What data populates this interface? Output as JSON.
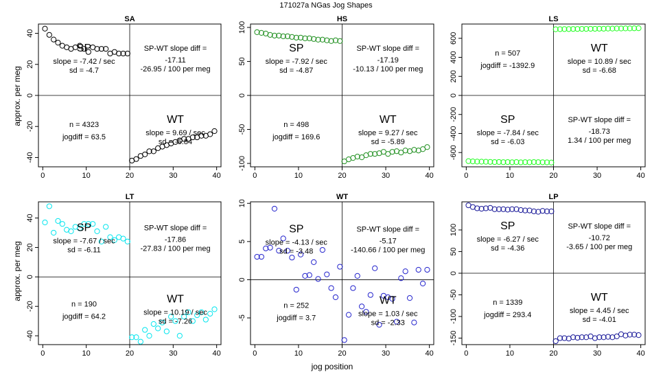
{
  "figure": {
    "title": "171027a   NGas Jog Shapes",
    "xlabel": "jog position",
    "ylabel": "approx. per meg"
  },
  "chart_data": [
    {
      "type": "scatter",
      "title": "SA",
      "color": "#000000",
      "xlim": [
        -1,
        41
      ],
      "ylim": [
        -46,
        46
      ],
      "xticks": [
        "0",
        "10",
        "20",
        "30",
        "40"
      ],
      "yticks": [
        "-40",
        "-20",
        "0",
        "20",
        "40"
      ],
      "ytick_values": [
        -40,
        -20,
        0,
        20,
        40
      ],
      "sp": {
        "label": "SP",
        "slope": "slope = -7.42 / sec",
        "sd": "sd = -4.7",
        "x": [
          0.5,
          1.5,
          2.5,
          3.5,
          4.5,
          5.5,
          6.5,
          7.5,
          8.5,
          9.5,
          10.5,
          11.5,
          12.5,
          13.5,
          14.5,
          15.5,
          16.5,
          17.5,
          18.5,
          19.5
        ],
        "y": [
          43,
          39,
          36,
          34,
          32,
          31,
          30,
          31,
          32,
          30,
          28,
          31,
          30,
          30,
          30,
          27,
          28,
          27,
          27,
          27
        ]
      },
      "wt": {
        "label": "WT",
        "slope": "slope = 9.69 / sec",
        "sd": "sd = -5.84",
        "x": [
          20.5,
          21.5,
          22.5,
          23.5,
          24.5,
          25.5,
          26.5,
          27.5,
          28.5,
          29.5,
          30.5,
          31.5,
          32.5,
          33.5,
          34.5,
          35.5,
          36.5,
          37.5,
          38.5,
          39.5
        ],
        "y": [
          -42,
          -41,
          -39,
          -38,
          -36,
          -36,
          -34,
          -33,
          -32,
          -31,
          -30,
          -29,
          -28,
          -28,
          -27,
          -27,
          -26,
          -26,
          -25,
          -23
        ]
      },
      "stats": {
        "n": "n = 4323",
        "jogdiff": "jogdiff = 63.5"
      },
      "diff": {
        "title": "SP-WT slope diff =",
        "value": "-17.11",
        "per": "-26.95 / 100 per meg"
      },
      "layout_slot": "top-left"
    },
    {
      "type": "scatter",
      "title": "HS",
      "color": "#1f8f1f",
      "xlim": [
        -1,
        41
      ],
      "ylim": [
        -105,
        105
      ],
      "xticks": [
        "0",
        "10",
        "20",
        "30",
        "40"
      ],
      "yticks": [
        "-100",
        "-50",
        "0",
        "50",
        "100"
      ],
      "ytick_values": [
        -100,
        -50,
        0,
        50,
        100
      ],
      "sp": {
        "label": "SP",
        "slope": "slope = -7.92 / sec",
        "sd": "sd = -4.87",
        "x": [
          0.5,
          1.5,
          2.5,
          3.5,
          4.5,
          5.5,
          6.5,
          7.5,
          8.5,
          9.5,
          10.5,
          11.5,
          12.5,
          13.5,
          14.5,
          15.5,
          16.5,
          17.5,
          18.5,
          19.5
        ],
        "y": [
          93,
          92,
          91,
          89,
          88,
          88,
          87,
          87,
          86,
          85,
          85,
          84,
          84,
          83,
          82,
          82,
          81,
          80,
          81,
          80
        ]
      },
      "wt": {
        "label": "WT",
        "slope": "slope = 9.27 / sec",
        "sd": "sd = -5.89",
        "x": [
          20.5,
          21.5,
          22.5,
          23.5,
          24.5,
          25.5,
          26.5,
          27.5,
          28.5,
          29.5,
          30.5,
          31.5,
          32.5,
          33.5,
          34.5,
          35.5,
          36.5,
          37.5,
          38.5,
          39.5
        ],
        "y": [
          -97,
          -94,
          -92,
          -90,
          -91,
          -88,
          -86,
          -86,
          -85,
          -83,
          -86,
          -83,
          -82,
          -84,
          -81,
          -82,
          -80,
          -81,
          -79,
          -76
        ]
      },
      "stats": {
        "n": "n = 498",
        "jogdiff": "jogdiff = 169.6"
      },
      "diff": {
        "title": "SP-WT slope diff =",
        "value": "-17.19",
        "per": "-10.13 / 100 per meg"
      },
      "layout_slot": "top-middle"
    },
    {
      "type": "scatter",
      "title": "LS",
      "color": "#22ff22",
      "xlim": [
        -1,
        41
      ],
      "ylim": [
        -750,
        750
      ],
      "xticks": [
        "0",
        "10",
        "20",
        "30",
        "40"
      ],
      "yticks": [
        "-600",
        "-400",
        "-200",
        "0",
        "200",
        "400",
        "600"
      ],
      "ytick_values": [
        -600,
        -400,
        -200,
        0,
        200,
        400,
        600
      ],
      "sp": {
        "label": "SP",
        "slope": "slope = -7.84 / sec",
        "sd": "sd = -6.03",
        "x": [
          0.5,
          1.5,
          2.5,
          3.5,
          4.5,
          5.5,
          6.5,
          7.5,
          8.5,
          9.5,
          10.5,
          11.5,
          12.5,
          13.5,
          14.5,
          15.5,
          16.5,
          17.5,
          18.5,
          19.5
        ],
        "y": [
          -690,
          -693,
          -695,
          -696,
          -697,
          -698,
          -700,
          -699,
          -701,
          -700,
          -702,
          -700,
          -703,
          -701,
          -702,
          -700,
          -701,
          -702,
          -703,
          -705
        ]
      },
      "wt": {
        "label": "WT",
        "slope": "slope = 10.89 / sec",
        "sd": "sd = -6.68",
        "x": [
          20.5,
          21.5,
          22.5,
          23.5,
          24.5,
          25.5,
          26.5,
          27.5,
          28.5,
          29.5,
          30.5,
          31.5,
          32.5,
          33.5,
          34.5,
          35.5,
          36.5,
          37.5,
          38.5,
          39.5
        ],
        "y": [
          695,
          696,
          697,
          697,
          698,
          698,
          699,
          699,
          700,
          700,
          701,
          701,
          702,
          702,
          703,
          703,
          704,
          704,
          705,
          706
        ]
      },
      "stats": {
        "n": "n = 507",
        "jogdiff": "jogdiff = -1392.9"
      },
      "diff": {
        "title": "SP-WT slope diff =",
        "value": "-18.73",
        "per": "1.34 / 100 per meg"
      },
      "layout_slot": "top-right"
    },
    {
      "type": "scatter",
      "title": "LT",
      "color": "#00e5ee",
      "xlim": [
        -1,
        41
      ],
      "ylim": [
        -46,
        51
      ],
      "xticks": [
        "0",
        "10",
        "20",
        "30",
        "40"
      ],
      "yticks": [
        "-40",
        "-20",
        "0",
        "20",
        "40"
      ],
      "ytick_values": [
        -40,
        -20,
        0,
        20,
        40
      ],
      "sp": {
        "label": "SP",
        "slope": "slope = -7.67 / sec",
        "sd": "sd = -6.11",
        "x": [
          0.5,
          1.5,
          2.5,
          3.5,
          4.5,
          5.5,
          6.5,
          7.5,
          8.5,
          9.5,
          10.5,
          11.5,
          12.5,
          13.5,
          14.5,
          15.5,
          16.5,
          17.5,
          18.5,
          19.5
        ],
        "y": [
          37,
          48,
          30,
          38,
          36,
          32,
          31,
          34,
          33,
          36,
          36,
          36,
          31,
          24,
          34,
          27,
          25,
          27,
          26,
          24
        ]
      },
      "wt": {
        "label": "WT",
        "slope": "slope = 10.19 / sec",
        "sd": "sd = -7.26",
        "x": [
          20.5,
          21.5,
          22.5,
          23.5,
          24.5,
          25.5,
          26.5,
          27.5,
          28.5,
          29.5,
          30.5,
          31.5,
          32.5,
          33.5,
          34.5,
          35.5,
          36.5,
          37.5,
          38.5,
          39.5
        ],
        "y": [
          -41,
          -41,
          -44,
          -36,
          -40,
          -32,
          -35,
          -31,
          -37,
          -27,
          -30,
          -40,
          -27,
          -24,
          -30,
          -26,
          -24,
          -29,
          -25,
          -22
        ]
      },
      "stats": {
        "n": "n = 190",
        "jogdiff": "jogdiff = 64.2"
      },
      "diff": {
        "title": "SP-WT slope diff =",
        "value": "-17.86",
        "per": "-27.83 / 100 per meg"
      },
      "layout_slot": "bottom-left"
    },
    {
      "type": "scatter",
      "title": "WT",
      "color": "#2222cc",
      "xlim": [
        -1,
        41
      ],
      "ylim": [
        -8.5,
        10.2
      ],
      "xticks": [
        "0",
        "10",
        "20",
        "30",
        "40"
      ],
      "yticks": [
        "-5",
        "0",
        "5",
        "10"
      ],
      "ytick_values": [
        -5,
        0,
        5,
        10
      ],
      "sp": {
        "label": "SP",
        "slope": "slope = -4.13 / sec",
        "sd": "sd = -3.48",
        "x": [
          0.5,
          1.5,
          2.5,
          3.5,
          4.5,
          5.5,
          6.5,
          7.5,
          8.5,
          9.5,
          10.5,
          11.5,
          12.5,
          13.5,
          14.5,
          15.5,
          16.5,
          17.5,
          18.5,
          19.5
        ],
        "y": [
          3.0,
          3.0,
          4.1,
          4.2,
          9.3,
          3.8,
          5.4,
          3.8,
          2.9,
          -1.3,
          3.3,
          0.5,
          0.6,
          2.3,
          0.1,
          3.9,
          0.7,
          -1.1,
          -2.3,
          1.7
        ]
      },
      "wt": {
        "label": "WT",
        "slope": "slope = 1.03 / sec",
        "sd": "sd = -2.33",
        "x": [
          20.5,
          21.5,
          22.5,
          23.5,
          24.5,
          25.5,
          26.5,
          27.5,
          28.5,
          29.5,
          30.5,
          31.5,
          32.5,
          33.5,
          34.5,
          35.5,
          36.5,
          37.5,
          38.5,
          39.5
        ],
        "y": [
          -7.9,
          -4.6,
          -1.1,
          0.5,
          -3.5,
          -4.2,
          -2.0,
          1.5,
          -5.9,
          -2.1,
          -2.3,
          -2.5,
          -5.5,
          0.2,
          1.1,
          -2.4,
          -5.6,
          1.3,
          -0.5,
          1.3
        ]
      },
      "stats": {
        "n": "n = 252",
        "jogdiff": "jogdiff = 3.7"
      },
      "diff": {
        "title": "SP-WT slope diff =",
        "value": "-5.17",
        "per": "-140.66 / 100 per meg"
      },
      "layout_slot": "bottom-middle"
    },
    {
      "type": "scatter",
      "title": "LP",
      "color": "#1a1a99",
      "xlim": [
        -1,
        41
      ],
      "ylim": [
        -165,
        165
      ],
      "xticks": [
        "0",
        "10",
        "20",
        "30",
        "40"
      ],
      "yticks": [
        "-150",
        "-100",
        "-50",
        "0",
        "50",
        "100"
      ],
      "ytick_values": [
        -150,
        -100,
        -50,
        0,
        50,
        100
      ],
      "sp": {
        "label": "SP",
        "slope": "slope = -6.27 / sec",
        "sd": "sd = -4.36",
        "x": [
          0.5,
          1.5,
          2.5,
          3.5,
          4.5,
          5.5,
          6.5,
          7.5,
          8.5,
          9.5,
          10.5,
          11.5,
          12.5,
          13.5,
          14.5,
          15.5,
          16.5,
          17.5,
          18.5,
          19.5
        ],
        "y": [
          157,
          153,
          150,
          149,
          150,
          151,
          148,
          148,
          148,
          147,
          148,
          148,
          146,
          145,
          145,
          143,
          142,
          144,
          143,
          143
        ]
      },
      "wt": {
        "label": "WT",
        "slope": "slope = 4.45 / sec",
        "sd": "sd = -4.01",
        "x": [
          20.5,
          21.5,
          22.5,
          23.5,
          24.5,
          25.5,
          26.5,
          27.5,
          28.5,
          29.5,
          30.5,
          31.5,
          32.5,
          33.5,
          34.5,
          35.5,
          36.5,
          37.5,
          38.5,
          39.5
        ],
        "y": [
          -157,
          -150,
          -150,
          -151,
          -148,
          -149,
          -148,
          -148,
          -146,
          -150,
          -148,
          -148,
          -147,
          -148,
          -146,
          -141,
          -144,
          -142,
          -142,
          -143
        ]
      },
      "stats": {
        "n": "n = 1339",
        "jogdiff": "jogdiff = 293.4"
      },
      "diff": {
        "title": "SP-WT slope diff =",
        "value": "-10.72",
        "per": "-3.65 / 100 per meg"
      },
      "layout_slot": "bottom-right"
    }
  ]
}
